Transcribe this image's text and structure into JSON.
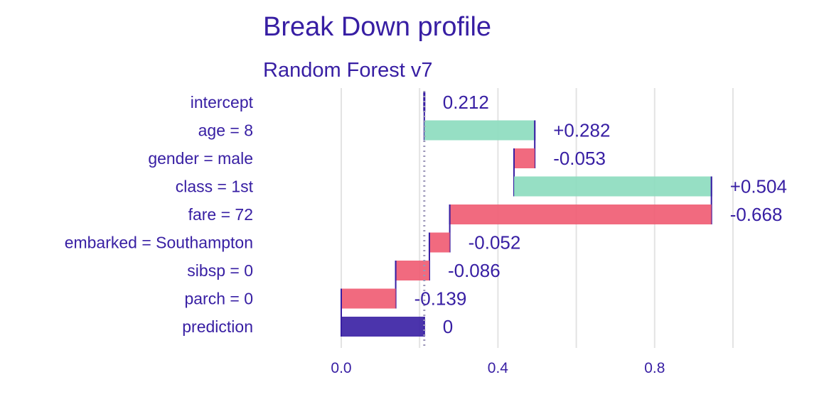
{
  "chart_data": {
    "type": "bar",
    "title": "Break Down profile",
    "subtitle": "Random Forest v7",
    "xlabel": "",
    "ylabel": "",
    "xlim": [
      -0.2,
      1.1
    ],
    "x_ticks": [
      0.0,
      0.4,
      0.8
    ],
    "x_tick_labels": [
      "0.0",
      "0.4",
      "0.8"
    ],
    "grid": true,
    "intercept_line": 0.212,
    "bars": [
      {
        "label": "intercept",
        "start": 0.212,
        "end": 0.212,
        "value_label": "0.212",
        "kind": "intercept"
      },
      {
        "label": "age = 8",
        "start": 0.212,
        "end": 0.494,
        "value_label": "+0.282",
        "kind": "positive"
      },
      {
        "label": "gender = male",
        "start": 0.494,
        "end": 0.441,
        "value_label": "-0.053",
        "kind": "negative"
      },
      {
        "label": "class = 1st",
        "start": 0.441,
        "end": 0.945,
        "value_label": "+0.504",
        "kind": "positive"
      },
      {
        "label": "fare = 72",
        "start": 0.945,
        "end": 0.277,
        "value_label": "-0.668",
        "kind": "negative"
      },
      {
        "label": "embarked = Southampton",
        "start": 0.277,
        "end": 0.225,
        "value_label": "-0.052",
        "kind": "negative"
      },
      {
        "label": "sibsp = 0",
        "start": 0.225,
        "end": 0.139,
        "value_label": "-0.086",
        "kind": "negative"
      },
      {
        "label": "parch = 0",
        "start": 0.139,
        "end": 0.0,
        "value_label": "-0.139",
        "kind": "negative"
      },
      {
        "label": "prediction",
        "start": 0.0,
        "end": 0.212,
        "value_label": "0",
        "kind": "prediction"
      }
    ],
    "colors": {
      "text": "#371ea3",
      "positive": "#8bdcbe",
      "negative": "#f05a71",
      "prediction": "#371ea3",
      "grid": "#e3e3e3",
      "connector": "#371ea3",
      "intercept_line": "#9a95b8"
    }
  }
}
